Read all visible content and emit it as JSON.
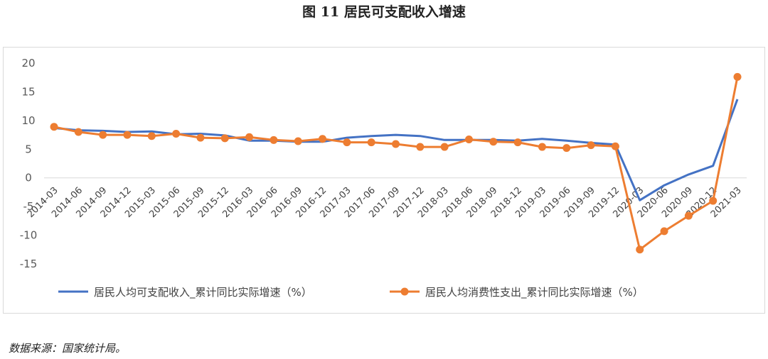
{
  "figure_title": "图 11  居民可支配收入增速",
  "source": "数据来源：国家统计局。",
  "chart_data": {
    "type": "line",
    "title": "",
    "xlabel": "",
    "ylabel": "",
    "ylim": [
      -15,
      20
    ],
    "yticks": [
      -15,
      -10,
      -5,
      0,
      5,
      10,
      15,
      20
    ],
    "grid": false,
    "legend_position": "bottom",
    "categories": [
      "2014-03",
      "2014-06",
      "2014-09",
      "2014-12",
      "2015-03",
      "2015-06",
      "2015-09",
      "2015-12",
      "2016-03",
      "2016-06",
      "2016-09",
      "2016-12",
      "2017-03",
      "2017-06",
      "2017-09",
      "2017-12",
      "2018-03",
      "2018-06",
      "2018-09",
      "2018-12",
      "2019-03",
      "2019-06",
      "2019-09",
      "2019-12",
      "2020-03",
      "2020-06",
      "2020-09",
      "2020-12",
      "2021-03"
    ],
    "series": [
      {
        "name": "居民人均可支配收入_累计同比实际增速（%）",
        "color": "#4472c4",
        "markers": false,
        "values": [
          8.7,
          8.3,
          8.2,
          8.0,
          8.1,
          7.6,
          7.7,
          7.4,
          6.5,
          6.5,
          6.3,
          6.3,
          7.0,
          7.3,
          7.5,
          7.3,
          6.6,
          6.6,
          6.6,
          6.5,
          6.8,
          6.5,
          6.1,
          5.8,
          -3.9,
          -1.3,
          0.6,
          2.1,
          13.7
        ]
      },
      {
        "name": "居民人均消费性支出_累计同比实际增速（%）",
        "color": "#ed7d31",
        "markers": true,
        "values": [
          8.9,
          8.0,
          7.5,
          7.5,
          7.3,
          7.7,
          7.0,
          6.9,
          7.1,
          6.6,
          6.4,
          6.8,
          6.2,
          6.2,
          5.9,
          5.4,
          5.4,
          6.7,
          6.3,
          6.2,
          5.4,
          5.2,
          5.7,
          5.5,
          -12.5,
          -9.3,
          -6.6,
          -4.0,
          17.6
        ]
      }
    ]
  }
}
